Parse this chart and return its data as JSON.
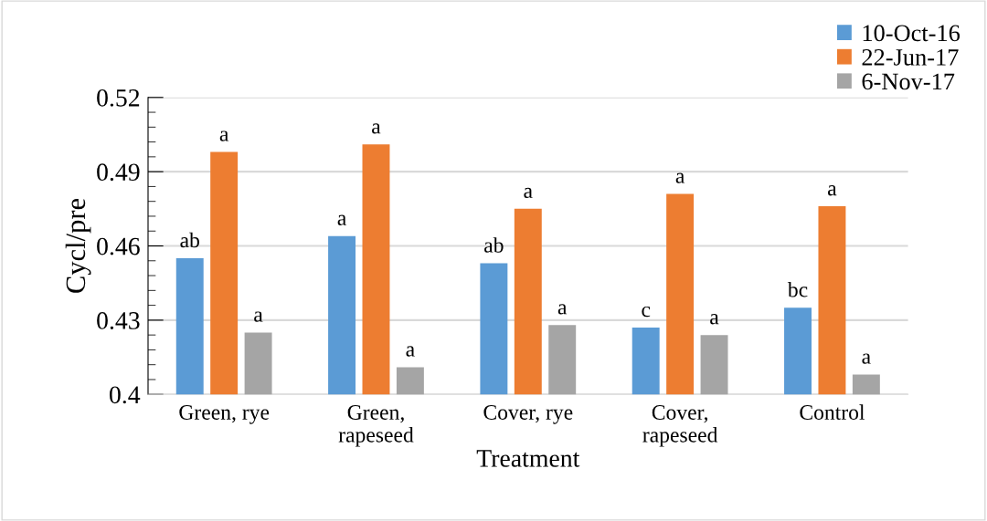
{
  "chart_data": {
    "type": "bar",
    "xlabel": "Treatment",
    "ylabel": "Cycl/pre",
    "categories": [
      "Green, rye",
      "Green,\nrapeseed",
      "Cover, rye",
      "Cover,\nrapeseed",
      "Control"
    ],
    "series": [
      {
        "name": "10-Oct-16",
        "color": "#5b9bd5",
        "values": [
          0.455,
          0.464,
          0.453,
          0.427,
          0.435
        ],
        "value_labels": [
          "ab",
          "a",
          "ab",
          "c",
          "bc"
        ]
      },
      {
        "name": "22-Jun-17",
        "color": "#ed7d31",
        "values": [
          0.498,
          0.501,
          0.475,
          0.481,
          0.476
        ],
        "value_labels": [
          "a",
          "a",
          "a",
          "a",
          "a"
        ]
      },
      {
        "name": "6-Nov-17",
        "color": "#a5a5a5",
        "values": [
          0.425,
          0.411,
          0.428,
          0.424,
          0.408
        ],
        "value_labels": [
          "a",
          "a",
          "a",
          "a",
          "a"
        ]
      }
    ],
    "ylim": [
      0.4,
      0.52
    ],
    "yticks": [
      {
        "value": 0.4,
        "label": "0.4"
      },
      {
        "value": 0.406,
        "label": null
      },
      {
        "value": 0.412,
        "label": null
      },
      {
        "value": 0.418,
        "label": null
      },
      {
        "value": 0.424,
        "label": null
      },
      {
        "value": 0.43,
        "label": "0.43"
      },
      {
        "value": 0.436,
        "label": null
      },
      {
        "value": 0.442,
        "label": null
      },
      {
        "value": 0.448,
        "label": null
      },
      {
        "value": 0.454,
        "label": null
      },
      {
        "value": 0.46,
        "label": "0.46"
      },
      {
        "value": 0.466,
        "label": null
      },
      {
        "value": 0.472,
        "label": null
      },
      {
        "value": 0.478,
        "label": null
      },
      {
        "value": 0.484,
        "label": null
      },
      {
        "value": 0.49,
        "label": "0.49"
      },
      {
        "value": 0.496,
        "label": null
      },
      {
        "value": 0.502,
        "label": null
      },
      {
        "value": 0.508,
        "label": null
      },
      {
        "value": 0.514,
        "label": null
      },
      {
        "value": 0.52,
        "label": "0.52"
      }
    ],
    "grid": "y",
    "legend": "top right"
  }
}
